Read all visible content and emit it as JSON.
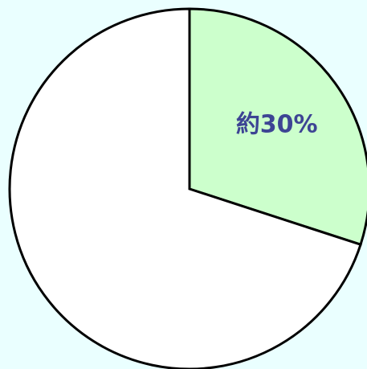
{
  "chart_data": {
    "type": "pie",
    "values": [
      30,
      70
    ],
    "value_labels": [
      "約30%",
      null
    ],
    "colors": [
      "#ccffcc",
      "#ffffff"
    ],
    "label_color": "#3d4494"
  }
}
